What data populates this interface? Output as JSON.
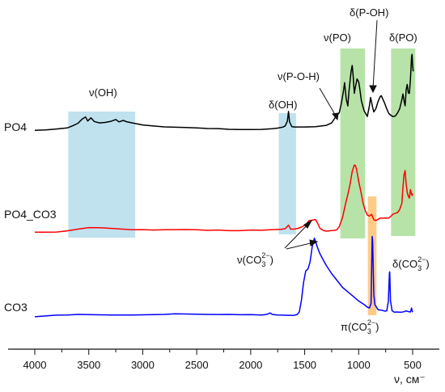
{
  "chart_data": {
    "type": "line",
    "xlabel": "ν, см⁻",
    "xlim": [
      4050,
      420
    ],
    "x_reversed": true,
    "x_ticks": [
      4000,
      3500,
      3000,
      2500,
      2000,
      1500,
      1000,
      500
    ],
    "y_ticks_shown": false,
    "grid": false,
    "series": [
      {
        "name": "PO4",
        "color": "#000000",
        "points": [
          [
            4000,
            0.03
          ],
          [
            3900,
            0.04
          ],
          [
            3800,
            0.06
          ],
          [
            3700,
            0.08
          ],
          [
            3650,
            0.12
          ],
          [
            3600,
            0.17
          ],
          [
            3560,
            0.26
          ],
          [
            3530,
            0.3
          ],
          [
            3510,
            0.22
          ],
          [
            3480,
            0.28
          ],
          [
            3450,
            0.2
          ],
          [
            3400,
            0.17
          ],
          [
            3350,
            0.18
          ],
          [
            3300,
            0.2
          ],
          [
            3250,
            0.24
          ],
          [
            3220,
            0.2
          ],
          [
            3180,
            0.22
          ],
          [
            3150,
            0.2
          ],
          [
            3100,
            0.18
          ],
          [
            3000,
            0.14
          ],
          [
            2900,
            0.12
          ],
          [
            2800,
            0.1
          ],
          [
            2700,
            0.09
          ],
          [
            2600,
            0.08
          ],
          [
            2500,
            0.07
          ],
          [
            2400,
            0.06
          ],
          [
            2300,
            0.06
          ],
          [
            2200,
            0.05
          ],
          [
            2100,
            0.05
          ],
          [
            2000,
            0.05
          ],
          [
            1900,
            0.05
          ],
          [
            1800,
            0.06
          ],
          [
            1750,
            0.07
          ],
          [
            1700,
            0.09
          ],
          [
            1680,
            0.12
          ],
          [
            1660,
            0.22
          ],
          [
            1650,
            0.4
          ],
          [
            1640,
            0.2
          ],
          [
            1620,
            0.1
          ],
          [
            1600,
            0.09
          ],
          [
            1500,
            0.09
          ],
          [
            1400,
            0.1
          ],
          [
            1300,
            0.13
          ],
          [
            1250,
            0.18
          ],
          [
            1220,
            0.28
          ],
          [
            1200,
            0.33
          ],
          [
            1180,
            0.38
          ],
          [
            1160,
            0.56
          ],
          [
            1140,
            0.82
          ],
          [
            1130,
            0.98
          ],
          [
            1115,
            0.66
          ],
          [
            1100,
            0.52
          ],
          [
            1090,
            0.8
          ],
          [
            1070,
            1.2
          ],
          [
            1060,
            1.32
          ],
          [
            1050,
            1.1
          ],
          [
            1040,
            0.76
          ],
          [
            1030,
            0.9
          ],
          [
            1015,
            1.06
          ],
          [
            1000,
            1.0
          ],
          [
            990,
            0.86
          ],
          [
            975,
            0.62
          ],
          [
            960,
            0.5
          ],
          [
            950,
            0.42
          ],
          [
            935,
            0.36
          ],
          [
            920,
            0.3
          ],
          [
            900,
            0.52
          ],
          [
            890,
            0.68
          ],
          [
            870,
            0.48
          ],
          [
            860,
            0.4
          ],
          [
            840,
            0.46
          ],
          [
            820,
            0.6
          ],
          [
            800,
            0.7
          ],
          [
            790,
            0.72
          ],
          [
            760,
            0.58
          ],
          [
            740,
            0.46
          ],
          [
            720,
            0.36
          ],
          [
            700,
            0.32
          ],
          [
            680,
            0.3
          ],
          [
            660,
            0.32
          ],
          [
            640,
            0.38
          ],
          [
            620,
            0.46
          ],
          [
            600,
            0.64
          ],
          [
            590,
            0.76
          ],
          [
            580,
            0.62
          ],
          [
            570,
            0.52
          ],
          [
            560,
            0.84
          ],
          [
            550,
            0.94
          ],
          [
            540,
            0.78
          ],
          [
            530,
            0.76
          ],
          [
            520,
            1.06
          ],
          [
            510,
            1.5
          ],
          [
            505,
            1.55
          ],
          [
            500,
            1.32
          ],
          [
            495,
            1.2
          ]
        ]
      },
      {
        "name": "PO4_CO3",
        "color": "#ff0000",
        "points": [
          [
            4000,
            0.05
          ],
          [
            3900,
            0.05
          ],
          [
            3800,
            0.05
          ],
          [
            3700,
            0.07
          ],
          [
            3600,
            0.1
          ],
          [
            3500,
            0.13
          ],
          [
            3400,
            0.13
          ],
          [
            3300,
            0.12
          ],
          [
            3200,
            0.11
          ],
          [
            3100,
            0.1
          ],
          [
            3000,
            0.1
          ],
          [
            2900,
            0.09
          ],
          [
            2800,
            0.09
          ],
          [
            2700,
            0.09
          ],
          [
            2600,
            0.09
          ],
          [
            2500,
            0.09
          ],
          [
            2400,
            0.08
          ],
          [
            2300,
            0.09
          ],
          [
            2200,
            0.08
          ],
          [
            2100,
            0.08
          ],
          [
            2000,
            0.09
          ],
          [
            1900,
            0.08
          ],
          [
            1800,
            0.09
          ],
          [
            1720,
            0.1
          ],
          [
            1680,
            0.11
          ],
          [
            1650,
            0.18
          ],
          [
            1630,
            0.1
          ],
          [
            1600,
            0.1
          ],
          [
            1560,
            0.12
          ],
          [
            1520,
            0.16
          ],
          [
            1490,
            0.2
          ],
          [
            1460,
            0.27
          ],
          [
            1430,
            0.28
          ],
          [
            1400,
            0.3
          ],
          [
            1380,
            0.22
          ],
          [
            1360,
            0.12
          ],
          [
            1330,
            0.08
          ],
          [
            1300,
            0.07
          ],
          [
            1260,
            0.07
          ],
          [
            1220,
            0.08
          ],
          [
            1200,
            0.1
          ],
          [
            1180,
            0.16
          ],
          [
            1150,
            0.34
          ],
          [
            1120,
            0.62
          ],
          [
            1100,
            0.8
          ],
          [
            1080,
            1.0
          ],
          [
            1060,
            1.26
          ],
          [
            1040,
            1.38
          ],
          [
            1030,
            1.38
          ],
          [
            1020,
            1.3
          ],
          [
            1000,
            1.06
          ],
          [
            980,
            0.86
          ],
          [
            960,
            0.64
          ],
          [
            940,
            0.48
          ],
          [
            920,
            0.38
          ],
          [
            900,
            0.36
          ],
          [
            880,
            0.4
          ],
          [
            860,
            0.3
          ],
          [
            840,
            0.28
          ],
          [
            820,
            0.3
          ],
          [
            800,
            0.32
          ],
          [
            780,
            0.32
          ],
          [
            760,
            0.33
          ],
          [
            740,
            0.33
          ],
          [
            720,
            0.33
          ],
          [
            700,
            0.36
          ],
          [
            680,
            0.4
          ],
          [
            660,
            0.42
          ],
          [
            640,
            0.44
          ],
          [
            620,
            0.5
          ],
          [
            600,
            0.62
          ],
          [
            590,
            0.94
          ],
          [
            580,
            1.18
          ],
          [
            570,
            1.28
          ],
          [
            560,
            1.0
          ],
          [
            550,
            0.84
          ],
          [
            540,
            0.76
          ],
          [
            530,
            0.72
          ],
          [
            520,
            0.9
          ],
          [
            510,
            0.8
          ],
          [
            505,
            0.78
          ],
          [
            500,
            0.82
          ]
        ]
      },
      {
        "name": "CO3",
        "color": "#0000ff",
        "points": [
          [
            4000,
            0.02
          ],
          [
            3900,
            0.03
          ],
          [
            3800,
            0.04
          ],
          [
            3700,
            0.04
          ],
          [
            3600,
            0.05
          ],
          [
            3500,
            0.05
          ],
          [
            3400,
            0.05
          ],
          [
            3300,
            0.05
          ],
          [
            3200,
            0.05
          ],
          [
            3100,
            0.05
          ],
          [
            3000,
            0.05
          ],
          [
            2900,
            0.05
          ],
          [
            2800,
            0.05
          ],
          [
            2700,
            0.06
          ],
          [
            2600,
            0.06
          ],
          [
            2500,
            0.06
          ],
          [
            2400,
            0.06
          ],
          [
            2300,
            0.06
          ],
          [
            2200,
            0.06
          ],
          [
            2100,
            0.05
          ],
          [
            2000,
            0.05
          ],
          [
            1900,
            0.04
          ],
          [
            1850,
            0.05
          ],
          [
            1820,
            0.08
          ],
          [
            1800,
            0.05
          ],
          [
            1750,
            0.04
          ],
          [
            1700,
            0.04
          ],
          [
            1650,
            0.04
          ],
          [
            1600,
            0.04
          ],
          [
            1570,
            0.06
          ],
          [
            1550,
            0.1
          ],
          [
            1530,
            0.3
          ],
          [
            1510,
            0.6
          ],
          [
            1490,
            0.8
          ],
          [
            1470,
            0.84
          ],
          [
            1450,
            0.96
          ],
          [
            1430,
            1.22
          ],
          [
            1420,
            1.3
          ],
          [
            1410,
            1.36
          ],
          [
            1400,
            1.32
          ],
          [
            1380,
            1.2
          ],
          [
            1360,
            1.1
          ],
          [
            1330,
            1.0
          ],
          [
            1300,
            0.9
          ],
          [
            1250,
            0.76
          ],
          [
            1200,
            0.64
          ],
          [
            1150,
            0.52
          ],
          [
            1100,
            0.44
          ],
          [
            1050,
            0.36
          ],
          [
            1000,
            0.28
          ],
          [
            950,
            0.22
          ],
          [
            920,
            0.18
          ],
          [
            900,
            0.16
          ],
          [
            885,
            0.24
          ],
          [
            875,
            1.4
          ],
          [
            870,
            1.3
          ],
          [
            860,
            0.4
          ],
          [
            850,
            0.22
          ],
          [
            820,
            0.14
          ],
          [
            780,
            0.12
          ],
          [
            760,
            0.11
          ],
          [
            740,
            0.12
          ],
          [
            725,
            0.28
          ],
          [
            715,
            0.76
          ],
          [
            712,
            0.78
          ],
          [
            705,
            0.3
          ],
          [
            690,
            0.12
          ],
          [
            670,
            0.1
          ],
          [
            650,
            0.1
          ],
          [
            620,
            0.1
          ],
          [
            600,
            0.1
          ],
          [
            580,
            0.1
          ],
          [
            560,
            0.11
          ],
          [
            540,
            0.1
          ],
          [
            520,
            0.1
          ],
          [
            510,
            0.16
          ],
          [
            505,
            0.12
          ],
          [
            500,
            0.1
          ]
        ]
      }
    ],
    "bands": [
      {
        "color": "#bfe2ee",
        "x": [
          3690,
          3070
        ]
      },
      {
        "color": "#bfe2ee",
        "x": [
          1740,
          1580
        ]
      },
      {
        "color": "#b7e3a9",
        "x": [
          1170,
          940
        ]
      },
      {
        "color": "#b7e3a9",
        "x": [
          700,
          475
        ]
      },
      {
        "color": "#ffcc88",
        "x": [
          915,
          835
        ]
      }
    ],
    "annotations": [
      "ν(OH)",
      "δ(OH)",
      "ν(P-O-H)",
      "δ(P-OH)",
      "ν(PO)",
      "δ(PO)",
      "ν(CO3^2-)",
      "δ(CO3^2-)",
      "π(CO3^2-)"
    ]
  },
  "labels": {
    "xlabel": "ν, см⁻",
    "series_po4": "PO4",
    "series_po4co3": "PO4_CO3",
    "series_co3": "CO3",
    "nu_oh": "ν(OH)",
    "delta_oh": "δ(OH)",
    "nu_poh": "ν(P-O-H)",
    "delta_poh": "δ(P-OH)",
    "nu_po": "ν(PO)",
    "delta_po": "δ(PO)",
    "nu_co3_prefix": "ν(CO",
    "delta_co3_prefix": "δ(CO",
    "pi_co3_prefix": "π(CO",
    "co3_sub": "3",
    "co3_sup": "2−",
    "close_paren": ")"
  }
}
